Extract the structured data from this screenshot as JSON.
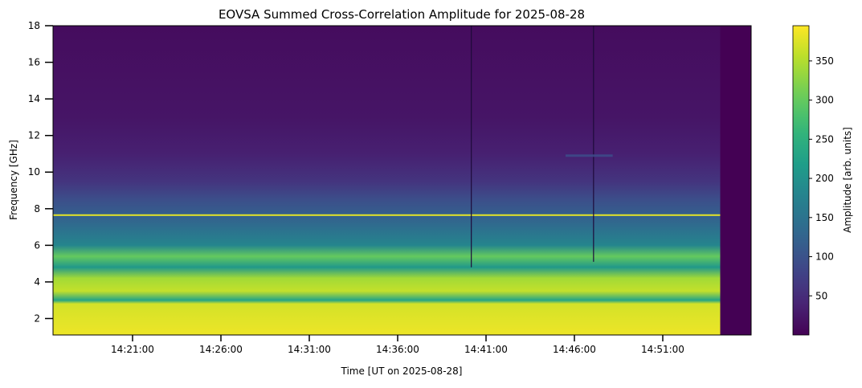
{
  "chart_data": {
    "type": "heatmap",
    "title": "EOVSA Summed Cross-Correlation Amplitude for 2025-08-28",
    "xlabel": "Time [UT on 2025-08-28]",
    "ylabel": "Frequency [GHz]",
    "x_range": [
      "14:16:30",
      "14:56:00"
    ],
    "ylim": [
      1.1,
      18
    ],
    "x_ticks": [
      "14:21:00",
      "14:26:00",
      "14:31:00",
      "14:36:00",
      "14:41:00",
      "14:46:00",
      "14:51:00"
    ],
    "y_ticks": [
      2,
      4,
      6,
      8,
      10,
      12,
      14,
      16,
      18
    ],
    "data_end_time": "14:54:15",
    "colormap": "viridis",
    "colorbar": {
      "label": "Amplitude [arb. units]",
      "range": [
        0,
        395
      ],
      "ticks": [
        50,
        100,
        150,
        200,
        250,
        300,
        350
      ]
    },
    "grid": false,
    "amplitude_profile_by_frequency": [
      {
        "freq": 1.2,
        "amplitude": 385
      },
      {
        "freq": 2.8,
        "amplitude": 370
      },
      {
        "freq": 3.0,
        "amplitude": 230
      },
      {
        "freq": 3.5,
        "amplitude": 360
      },
      {
        "freq": 4.2,
        "amplitude": 340
      },
      {
        "freq": 4.8,
        "amplitude": 210
      },
      {
        "freq": 5.4,
        "amplitude": 300
      },
      {
        "freq": 6.0,
        "amplitude": 180
      },
      {
        "freq": 6.8,
        "amplitude": 150
      },
      {
        "freq": 7.6,
        "amplitude": 120
      },
      {
        "freq": 8.5,
        "amplitude": 95
      },
      {
        "freq": 9.5,
        "amplitude": 60
      },
      {
        "freq": 11.0,
        "amplitude": 35
      },
      {
        "freq": 13.0,
        "amplitude": 22
      },
      {
        "freq": 18.0,
        "amplitude": 12
      }
    ],
    "bright_lines": [
      {
        "freq": 7.65,
        "amplitude": 380
      }
    ],
    "dark_vertical_lines": [
      {
        "time": "14:40:10",
        "freq_range": [
          4.8,
          18
        ]
      },
      {
        "time": "14:47:05",
        "freq_range": [
          5.1,
          18
        ]
      }
    ],
    "features": [
      {
        "time_range": [
          "14:45:30",
          "14:48:10"
        ],
        "freq": 10.9,
        "amplitude": 90
      }
    ]
  }
}
